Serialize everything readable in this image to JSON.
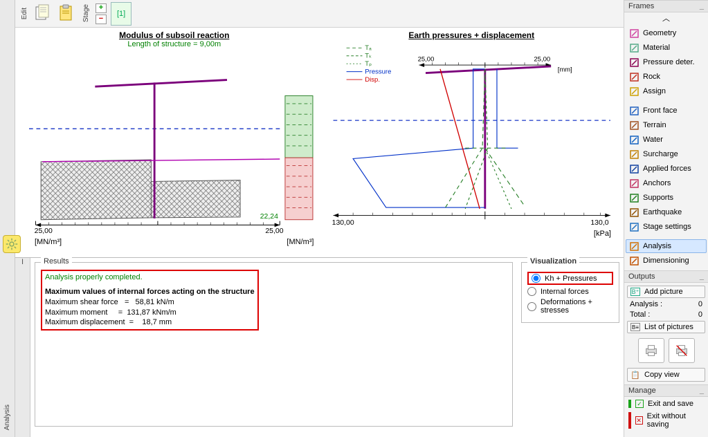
{
  "topstrip": {
    "edit_tab": "Edit",
    "stage_tab": "Stage",
    "stage_label": "[1]"
  },
  "charts": {
    "left": {
      "title": "Modulus of subsoil reaction",
      "subtitle": "Length of structure = 9,00m",
      "x_left_label": "25,00",
      "x_right_label": "25,00",
      "x_unit": "[MN/m³]",
      "annotation": "22,24",
      "background_color": "#ffffff",
      "hatch_fill": "#dedede",
      "hatch_stroke": "#555555",
      "structure_line_color": "#7b007b",
      "dash_color": "#1533c5",
      "small_panel_top_fill": "#cfeccc",
      "small_panel_top_stroke": "#2a812a",
      "small_panel_bot_fill": "#f6cfcf",
      "small_panel_bot_stroke": "#b33"
    },
    "right": {
      "title": "Earth pressures + displacement",
      "x_left_label": "130,00",
      "x_right_label": "130,0",
      "x_unit": "[kPa]",
      "top_left_label": "25,00",
      "top_right_label": "25,00",
      "top_unit": "[mm]",
      "legend": {
        "Ta": "Tₐ",
        "Tk": "Tₖ",
        "Tp": "Tₚ",
        "Pressure": "Pressure",
        "Disp": "Disp."
      },
      "colors": {
        "Ta": "#2a812a",
        "Tk": "#2a812a",
        "Tp": "#2a812a",
        "Pressure": "#0030c8",
        "Disp": "#d00000",
        "structure": "#7b007b",
        "dash_blue": "#1533c5"
      }
    }
  },
  "results": {
    "legend": "Results",
    "status": "Analysis properly completed.",
    "heading": "Maximum values of internal forces acting on the structure",
    "rows": {
      "shear_label": "Maximum shear force",
      "shear_value": "58,81 kN/m",
      "moment_label": "Maximum moment",
      "moment_value": "131,87 kNm/m",
      "disp_label": "Maximum displacement",
      "disp_value": "18,7 mm"
    }
  },
  "visualization": {
    "legend": "Visualization",
    "opts": {
      "kh": "Kh + Pressures",
      "intf": "Internal forces",
      "defs": "Deformations + stresses"
    },
    "selected": "kh"
  },
  "frames": {
    "header": "Frames",
    "items": [
      {
        "label": "Geometry",
        "icon_color": "#d041a0"
      },
      {
        "label": "Material",
        "icon_color": "#5a8"
      },
      {
        "label": "Pressure deter.",
        "icon_color": "#8a0050"
      },
      {
        "label": "Rock",
        "icon_color": "#c03020"
      },
      {
        "label": "Assign",
        "icon_color": "#cca000"
      },
      {
        "label": "Front face",
        "icon_color": "#2060c0"
      },
      {
        "label": "Terrain",
        "icon_color": "#a05020"
      },
      {
        "label": "Water",
        "icon_color": "#1060c0"
      },
      {
        "label": "Surcharge",
        "icon_color": "#c08000"
      },
      {
        "label": "Applied forces",
        "icon_color": "#1040a0"
      },
      {
        "label": "Anchors",
        "icon_color": "#c03060"
      },
      {
        "label": "Supports",
        "icon_color": "#208020"
      },
      {
        "label": "Earthquake",
        "icon_color": "#905000"
      },
      {
        "label": "Stage settings",
        "icon_color": "#2070c0"
      },
      {
        "label": "Analysis",
        "icon_color": "#d07000",
        "selected": true
      },
      {
        "label": "Dimensioning",
        "icon_color": "#c05000"
      }
    ]
  },
  "outputs": {
    "header": "Outputs",
    "add_picture": "Add picture",
    "analysis_label": "Analysis :",
    "analysis_count": "0",
    "total_label": "Total :",
    "total_count": "0",
    "list_pictures": "List of pictures",
    "copy_view": "Copy view"
  },
  "manage": {
    "header": "Manage",
    "exit_save": "Exit and save",
    "exit_nosave": "Exit without saving"
  },
  "leftbar": {
    "analysis_label": "Analysis"
  }
}
